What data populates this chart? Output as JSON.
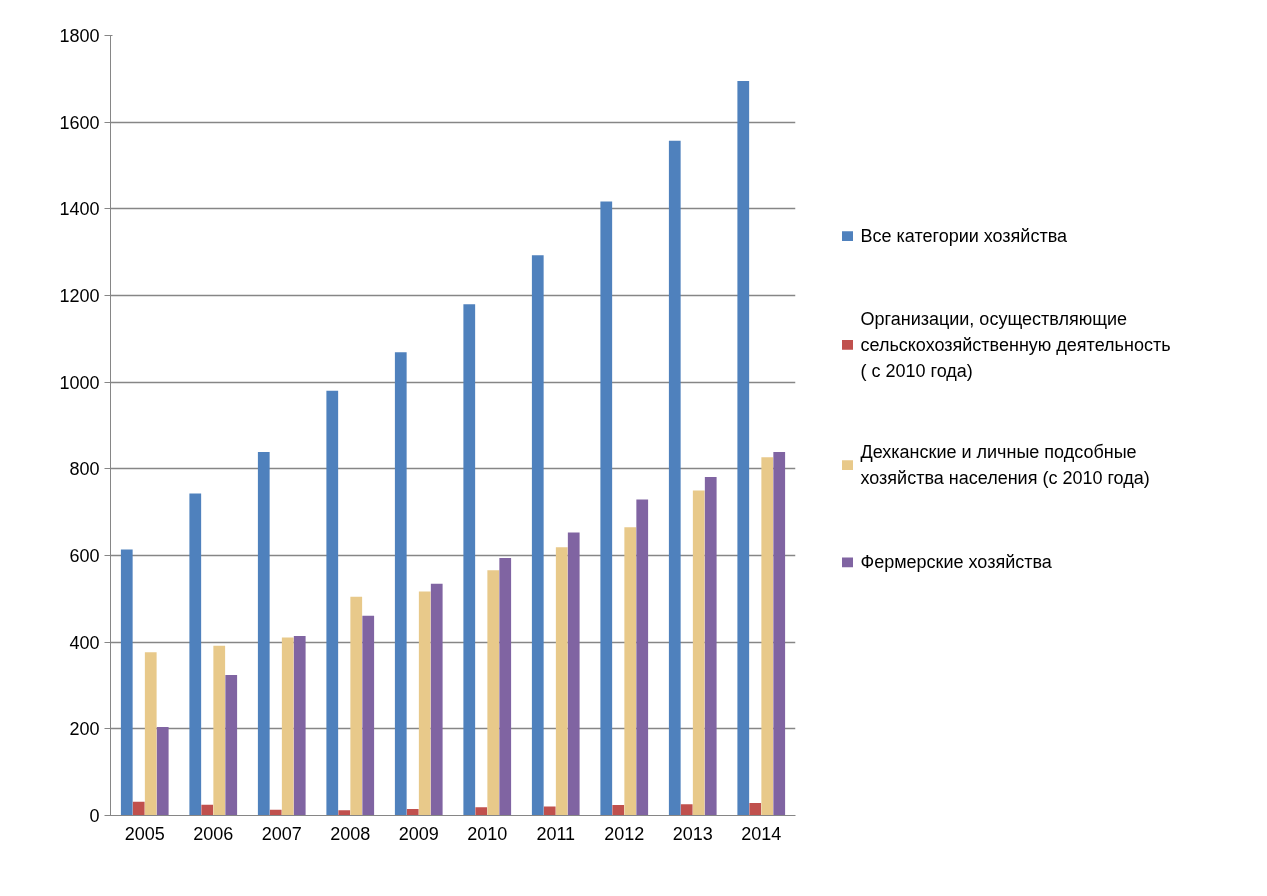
{
  "chart_data": {
    "type": "bar",
    "categories": [
      "2005",
      "2006",
      "2007",
      "2008",
      "2009",
      "2010",
      "2011",
      "2012",
      "2013",
      "2014"
    ],
    "series": [
      {
        "name": "Все категории хозяйства",
        "color": "#4f81bd",
        "values": [
          614,
          743,
          839,
          980,
          1069,
          1180,
          1293,
          1417,
          1557,
          1695
        ]
      },
      {
        "name": "Организации, осуществляющие сельскохозяйственную деятельность ( с 2010 года)",
        "color": "#c0504d",
        "values": [
          32,
          25,
          13,
          12,
          15,
          19,
          21,
          24,
          26,
          29
        ]
      },
      {
        "name": "Дехканские и личные подсобные хозяйства населения (с 2010 года)",
        "color": "#e8c98a",
        "values": [
          377,
          392,
          411,
          505,
          517,
          566,
          619,
          665,
          750,
          827
        ]
      },
      {
        "name": "Фермерские хозяйства",
        "color": "#8064a2",
        "values": [
          204,
          324,
          414,
          461,
          535,
          594,
          653,
          729,
          781,
          839
        ]
      }
    ],
    "ylim": [
      0,
      1800
    ],
    "yticks": [
      0,
      200,
      400,
      600,
      800,
      1000,
      1200,
      1400,
      1600,
      1800
    ],
    "grid": "y",
    "legend": "right"
  }
}
